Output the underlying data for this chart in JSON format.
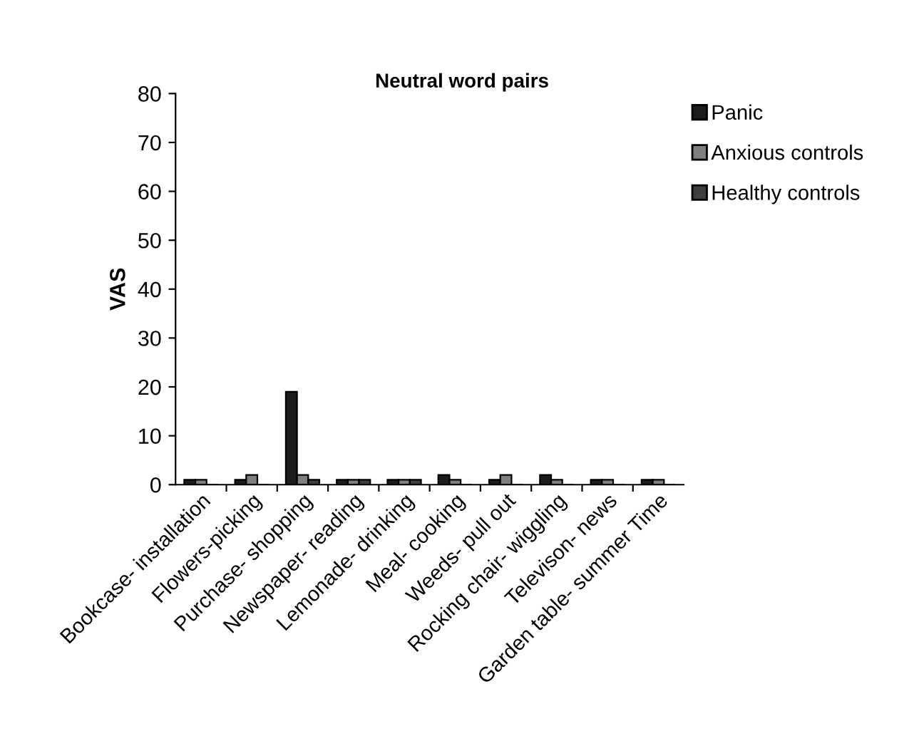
{
  "chart_data": {
    "type": "bar",
    "title": "Neutral word pairs",
    "ylabel": "VAS",
    "categories": [
      "Bookcase- installation",
      "Flowers-picking",
      "Purchase- shopping",
      "Newspaper- reading",
      "Lemonade- drinking",
      "Meal- cooking",
      "Weeds- pull out",
      "Rocking chair- wiggling",
      "Televison- news",
      "Garden table- summer Time"
    ],
    "series": [
      {
        "name": "Panic",
        "color": "#1c1c1c",
        "values": [
          1,
          1,
          19,
          1,
          1,
          2,
          1,
          2,
          1,
          1
        ]
      },
      {
        "name": "Anxious controls",
        "color": "#7f7f7f",
        "values": [
          1,
          2,
          2,
          1,
          1,
          1,
          2,
          1,
          1,
          1
        ]
      },
      {
        "name": "Healthy controls",
        "color": "#3f3f3f",
        "values": [
          0,
          0,
          1,
          1,
          1,
          0,
          0,
          0,
          0,
          0
        ]
      }
    ],
    "ylim": [
      0,
      80
    ],
    "yticks": [
      0,
      10,
      20,
      30,
      40,
      50,
      60,
      70,
      80
    ],
    "grid": false,
    "legend": "top right"
  }
}
